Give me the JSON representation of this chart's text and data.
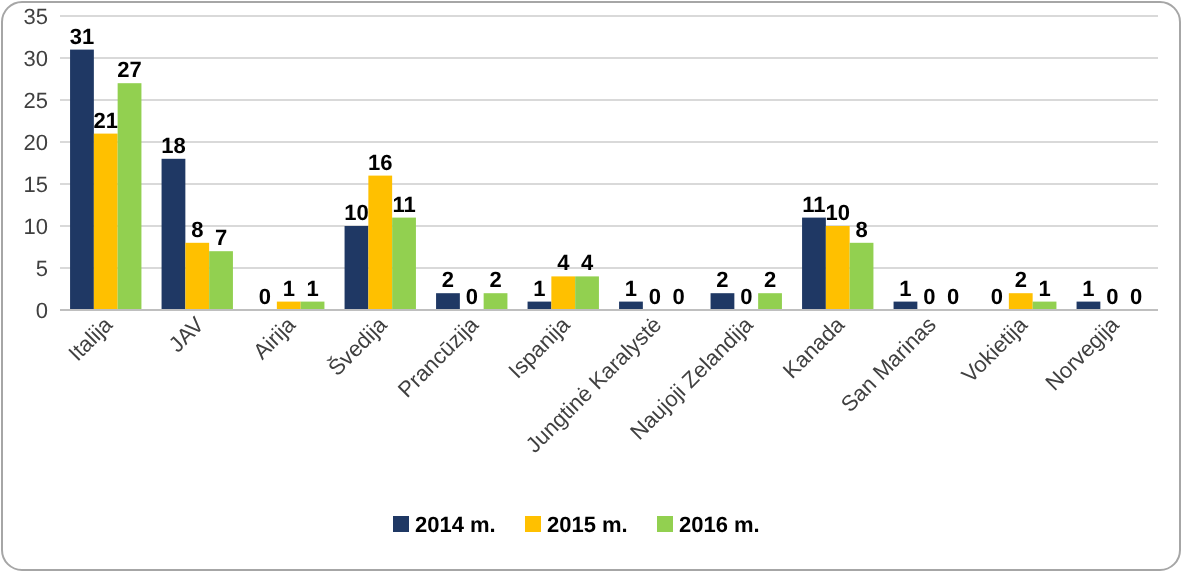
{
  "chart_data": {
    "type": "bar",
    "categories": [
      "Italija",
      "JAV",
      "Airija",
      "Švedija",
      "Prancūzija",
      "Ispanija",
      "Jungtinė Karalystė",
      "Naujoji Zelandija",
      "Kanada",
      "San Marinas",
      "Vokietija",
      "Norvegija"
    ],
    "series": [
      {
        "name": "2014 m.",
        "color": "#1f3864",
        "values": [
          31,
          18,
          0,
          10,
          2,
          1,
          1,
          2,
          11,
          1,
          0,
          1
        ]
      },
      {
        "name": "2015 m.",
        "color": "#ffc000",
        "values": [
          21,
          8,
          1,
          16,
          0,
          4,
          0,
          0,
          10,
          0,
          2,
          0
        ]
      },
      {
        "name": "2016 m.",
        "color": "#92d050",
        "values": [
          27,
          7,
          1,
          11,
          2,
          4,
          0,
          2,
          8,
          0,
          1,
          0
        ]
      }
    ],
    "ylim": [
      0,
      35
    ],
    "yticks": [
      0,
      5,
      10,
      15,
      20,
      25,
      30,
      35
    ],
    "grid": "y",
    "legend": "bottom",
    "data_labels": true
  }
}
